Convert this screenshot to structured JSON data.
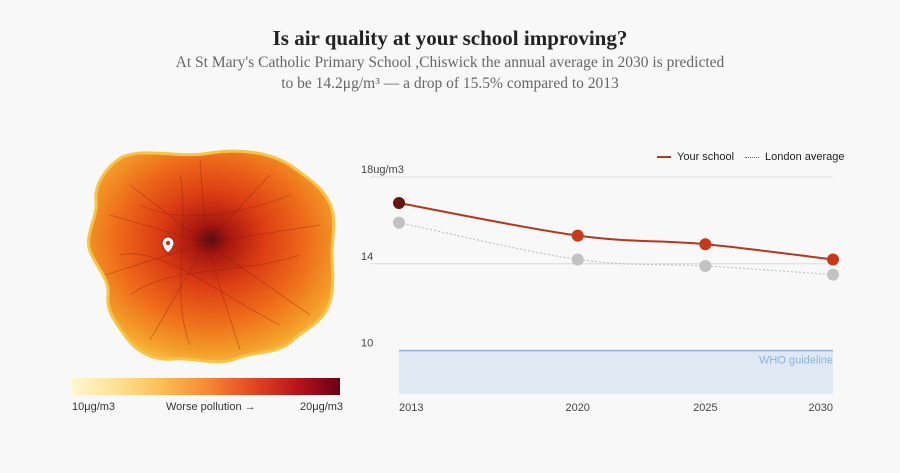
{
  "header": {
    "title": "Is air quality at your school improving?",
    "subtitle": "At St Mary's Catholic Primary School ,Chiswick the annual average in 2030 is predicted to be 14.2μg/m³ — a drop of 15.5% compared to 2013"
  },
  "map": {
    "marker_icon": "location-pin-icon",
    "scale": {
      "min_label": "10μg/m3",
      "mid_label": "Worse pollution →",
      "max_label": "20μg/m3"
    }
  },
  "legend": {
    "school_label": "Your school",
    "london_label": "London average"
  },
  "colors": {
    "school_line": "#b5361c",
    "london_line": "#c2c2c2",
    "who_band": "#dfe8f3",
    "who_line": "#8fb2da",
    "grid": "#dcdcdc"
  },
  "chart_data": {
    "type": "line",
    "x": [
      2013,
      2020,
      2025,
      2030
    ],
    "x_tick_labels": [
      "2013",
      "2020",
      "2025",
      "2030"
    ],
    "series": [
      {
        "name": "Your school",
        "values": [
          16.8,
          15.3,
          14.9,
          14.2
        ],
        "point_colors": [
          "#66160d",
          "#c7391b",
          "#c7391b",
          "#c7391b"
        ]
      },
      {
        "name": "London average",
        "values": [
          15.9,
          14.2,
          13.9,
          13.5
        ]
      }
    ],
    "y_ticks": [
      {
        "value": 18,
        "label": "18ug/m3"
      },
      {
        "value": 14,
        "label": "14"
      },
      {
        "value": 10,
        "label": "10"
      }
    ],
    "ylim": [
      8,
      18
    ],
    "who_guideline": {
      "value": 10,
      "label": "WHO guideline"
    }
  }
}
